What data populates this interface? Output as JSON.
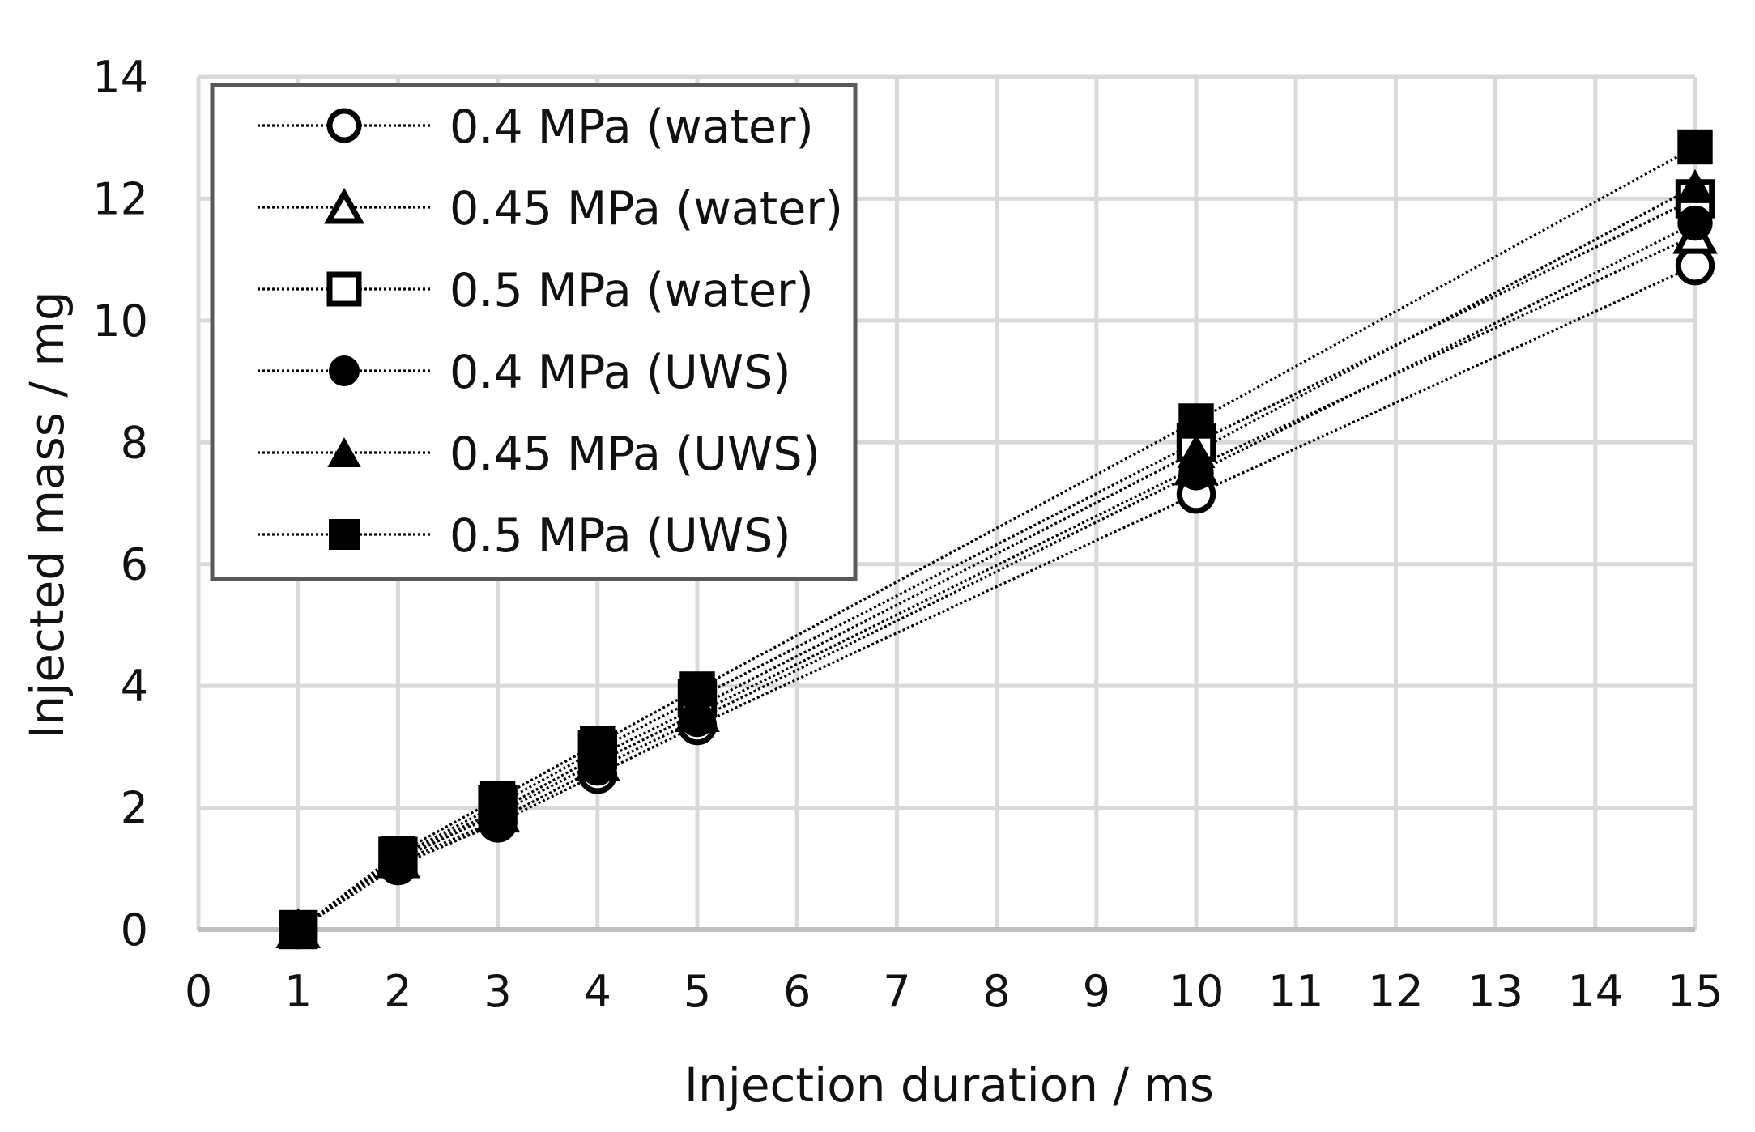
{
  "chart_data": {
    "type": "line",
    "title": "",
    "xlabel": "Injection duration  / ms",
    "ylabel": "Injected mass / mg",
    "xlim": [
      0,
      15
    ],
    "ylim": [
      0,
      14
    ],
    "xticks": [
      0,
      1,
      2,
      3,
      4,
      5,
      6,
      7,
      8,
      9,
      10,
      11,
      12,
      13,
      14,
      15
    ],
    "yticks": [
      0,
      2,
      4,
      6,
      8,
      10,
      12,
      14
    ],
    "grid": true,
    "legend_position": "top-left",
    "x": [
      1,
      2,
      3,
      4,
      5,
      10,
      15
    ],
    "series": [
      {
        "name": "0.4 MPa (water)",
        "marker": "circle-open",
        "values": [
          0,
          1.05,
          1.75,
          2.55,
          3.35,
          7.15,
          10.9
        ]
      },
      {
        "name": "0.45 MPa (water)",
        "marker": "triangle-open",
        "values": [
          0,
          1.15,
          1.9,
          2.75,
          3.55,
          7.6,
          11.4
        ]
      },
      {
        "name": "0.5 MPa (water)",
        "marker": "square-open",
        "values": [
          0,
          1.2,
          2.05,
          2.95,
          3.8,
          8.0,
          12.0
        ]
      },
      {
        "name": "0.4 MPa (UWS)",
        "marker": "circle-filled",
        "values": [
          0,
          1.1,
          1.8,
          2.65,
          3.45,
          7.5,
          11.6
        ]
      },
      {
        "name": "0.45 MPa (UWS)",
        "marker": "triangle-filled",
        "values": [
          0,
          1.2,
          1.95,
          2.85,
          3.65,
          7.85,
          12.2
        ]
      },
      {
        "name": "0.5 MPa (UWS)",
        "marker": "square-filled",
        "values": [
          0,
          1.25,
          2.15,
          3.05,
          3.95,
          8.35,
          12.85
        ]
      }
    ]
  },
  "colors": {
    "grid": "#d9d9d9",
    "axis": "#bfbfbf",
    "series": "#000000",
    "legend_border": "#595959",
    "background": "#ffffff"
  }
}
